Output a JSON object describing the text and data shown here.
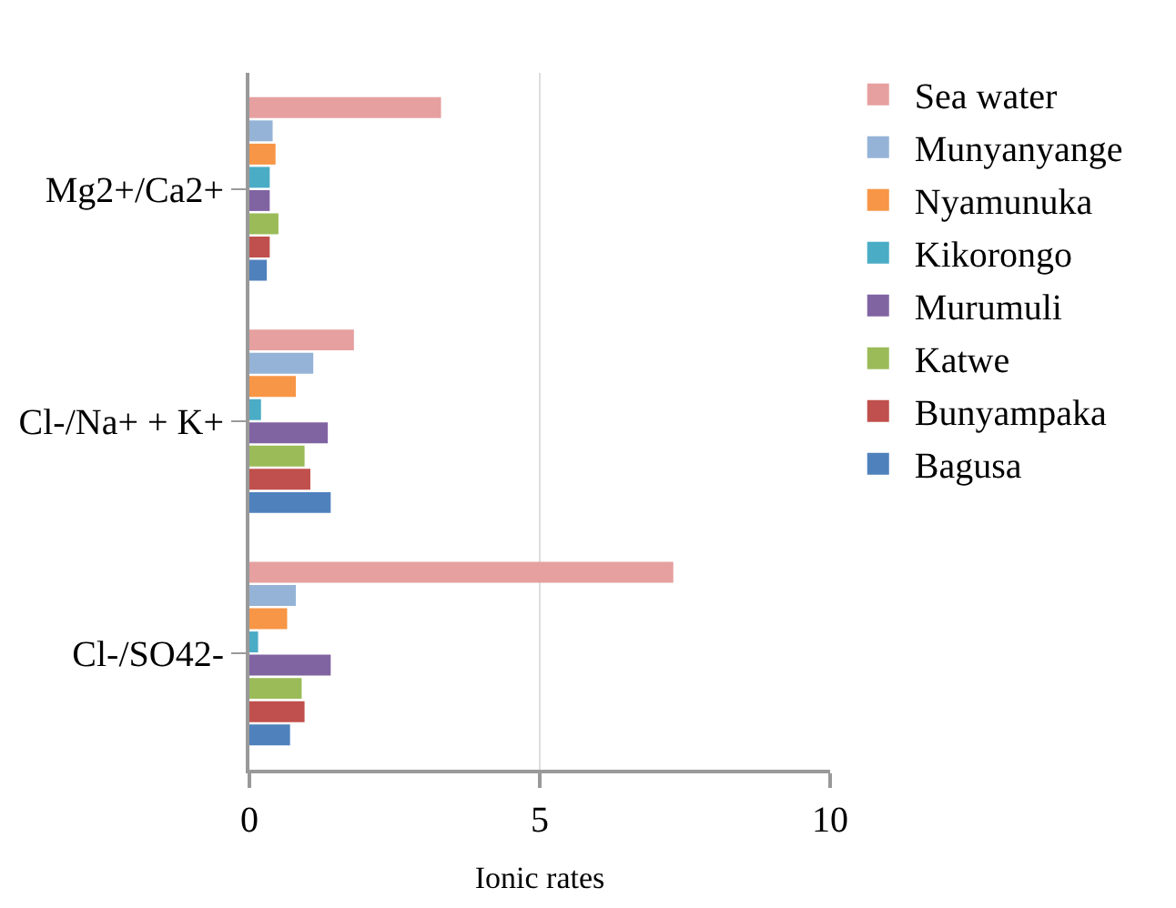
{
  "chart_data": {
    "type": "bar",
    "orientation": "horizontal",
    "xlabel": "Ionic rates",
    "categories": [
      "Mg2+/Ca2+",
      "Cl-/Na+ + K+",
      "Cl-/SO42-"
    ],
    "series": [
      {
        "name": "Bagusa",
        "color": "#4f81bd",
        "values": [
          0.3,
          1.4,
          0.7
        ]
      },
      {
        "name": "Bunyampaka",
        "color": "#c0504d",
        "values": [
          0.35,
          1.05,
          0.95
        ]
      },
      {
        "name": "Katwe",
        "color": "#9bbb59",
        "values": [
          0.5,
          0.95,
          0.9
        ]
      },
      {
        "name": "Murumuli",
        "color": "#8064a2",
        "values": [
          0.35,
          1.35,
          1.4
        ]
      },
      {
        "name": "Kikorongo",
        "color": "#4bacc6",
        "values": [
          0.35,
          0.2,
          0.15
        ]
      },
      {
        "name": "Nyamunuka",
        "color": "#f79646",
        "values": [
          0.45,
          0.8,
          0.65
        ]
      },
      {
        "name": "Munyanyange",
        "color": "#95b3d7",
        "values": [
          0.4,
          1.1,
          0.8
        ]
      },
      {
        "name": "Sea water",
        "color": "#e6a0a0",
        "values": [
          3.3,
          1.8,
          7.3
        ]
      }
    ],
    "xlim": [
      0,
      10
    ],
    "xticks": [
      0,
      5,
      10
    ],
    "grid": "x",
    "legend": "right"
  }
}
